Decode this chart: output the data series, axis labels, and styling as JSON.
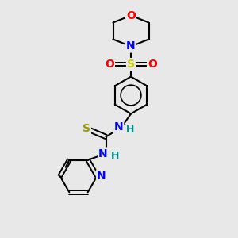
{
  "bg_color": "#e8e8e8",
  "bond_color": "#000000",
  "atom_colors": {
    "O": "#ff0000",
    "N": "#0000ff",
    "S_sulfonyl": "#cccc00",
    "S_thio": "#999900",
    "H": "#008b8b",
    "C": "#000000"
  }
}
